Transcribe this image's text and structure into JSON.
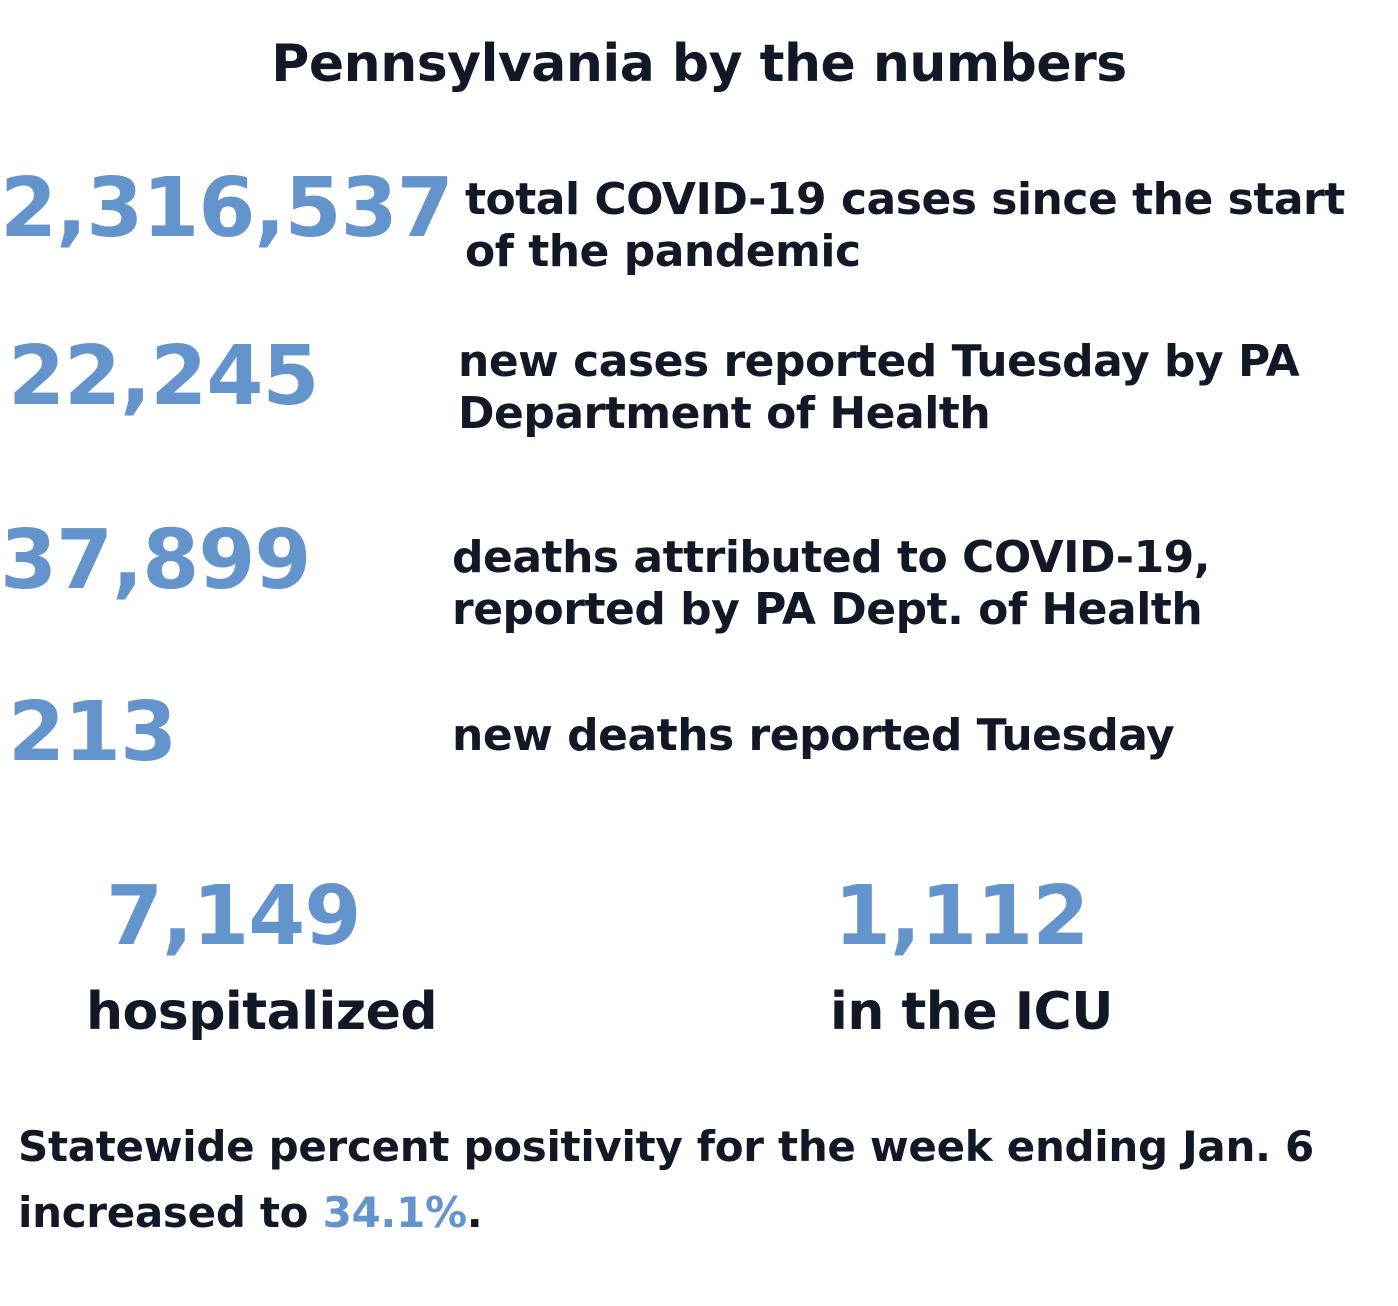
{
  "title": "Pennsylvania by the numbers",
  "stats": [
    {
      "value": "2,316,537",
      "label": "total COVID-19 cases since the start of the pandemic"
    },
    {
      "value": "22,245",
      "label": "new cases reported Tuesday by PA Department of Health"
    },
    {
      "value": "37,899",
      "label": "deaths attributed to COVID-19, reported by PA Dept. of Health"
    },
    {
      "value": "213",
      "label": "new deaths reported Tuesday"
    }
  ],
  "hospital": {
    "value": "7,149",
    "label": "hospitalized"
  },
  "icu": {
    "value": "1,112",
    "label": "in the ICU"
  },
  "footer": {
    "text": "Statewide percent positivity for the week ending Jan. 6 increased to ",
    "highlight": "34.1%",
    "end": "."
  },
  "colors": {
    "accent": "#6494cc",
    "text": "#121826"
  }
}
